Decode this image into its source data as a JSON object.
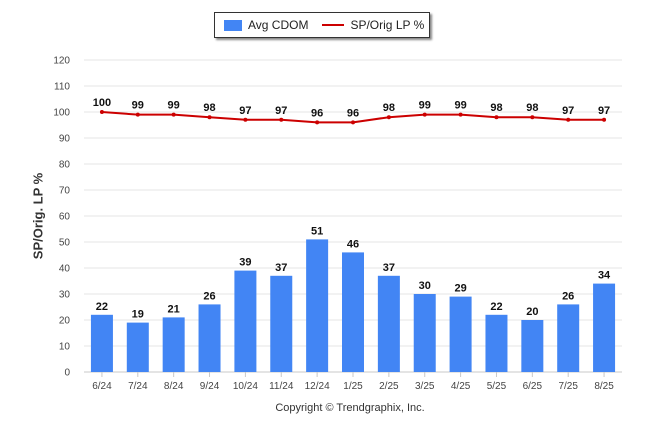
{
  "chart_data": {
    "type": "bar",
    "categories": [
      "6/24",
      "7/24",
      "8/24",
      "9/24",
      "10/24",
      "11/24",
      "12/24",
      "1/25",
      "2/25",
      "3/25",
      "4/25",
      "5/25",
      "6/25",
      "7/25",
      "8/25"
    ],
    "series": [
      {
        "name": "Avg CDOM",
        "kind": "bar",
        "color": "#4285f4",
        "values": [
          22,
          19,
          21,
          26,
          39,
          37,
          51,
          46,
          37,
          30,
          29,
          22,
          20,
          26,
          34
        ]
      },
      {
        "name": "SP/Orig LP %",
        "kind": "line",
        "color": "#cc0000",
        "values": [
          100,
          99,
          99,
          98,
          97,
          97,
          96,
          96,
          98,
          99,
          99,
          98,
          98,
          97,
          97
        ]
      }
    ],
    "ylabel": "SP/Orig. LP %",
    "ylim": [
      0,
      120
    ],
    "yticks": [
      0,
      10,
      20,
      30,
      40,
      50,
      60,
      70,
      80,
      90,
      100,
      110,
      120
    ],
    "grid": true,
    "legend_position": "top-center",
    "data_labels": true
  },
  "footer": {
    "copyright": "Copyright © Trendgraphix, Inc."
  }
}
